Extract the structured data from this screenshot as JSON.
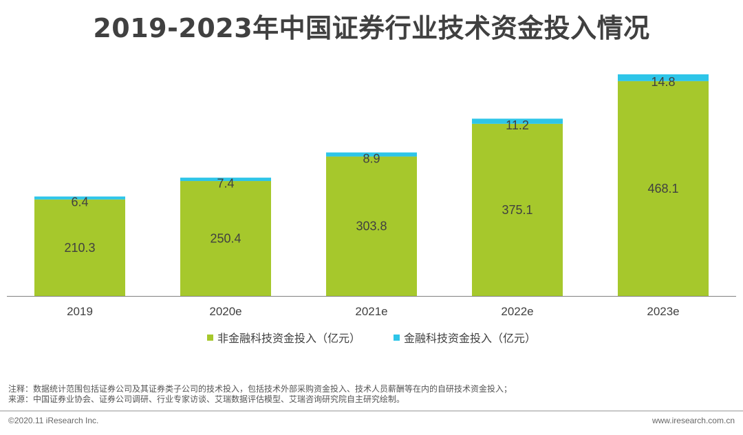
{
  "chart_data": {
    "type": "bar",
    "stacked": true,
    "title": "2019-2023年中国证券行业技术资金投入情况",
    "categories": [
      "2019",
      "2020e",
      "2021e",
      "2022e",
      "2023e"
    ],
    "series": [
      {
        "name": "非金融科技资金投入（亿元）",
        "values": [
          210.3,
          250.4,
          303.8,
          375.1,
          468.1
        ],
        "color": "#a6c82c"
      },
      {
        "name": "金融科技资金投入（亿元）",
        "values": [
          6.4,
          7.4,
          8.9,
          11.2,
          14.8
        ],
        "color": "#2ec5e8"
      }
    ],
    "value_labels": [
      [
        "210.3",
        "250.4",
        "303.8",
        "375.1",
        "468.1"
      ],
      [
        "6.4",
        "7.4",
        "8.9",
        "11.2",
        "14.8"
      ]
    ],
    "xlabel": "",
    "ylabel": "",
    "ylim": [
      0,
      482.9
    ],
    "legend_position": "bottom"
  },
  "notes": {
    "line1": "注释：数据统计范围包括证券公司及其证券类子公司的技术投入，包括技术外部采购资金投入、技术人员薪酬等在内的自研技术资金投入；",
    "line2": "来源：中国证券业协会、证券公司调研、行业专家访谈、艾瑞数据评估模型、艾瑞咨询研究院自主研究绘制。"
  },
  "footer": {
    "copyright": "©2020.11 iResearch Inc.",
    "website": "www.iresearch.com.cn"
  }
}
